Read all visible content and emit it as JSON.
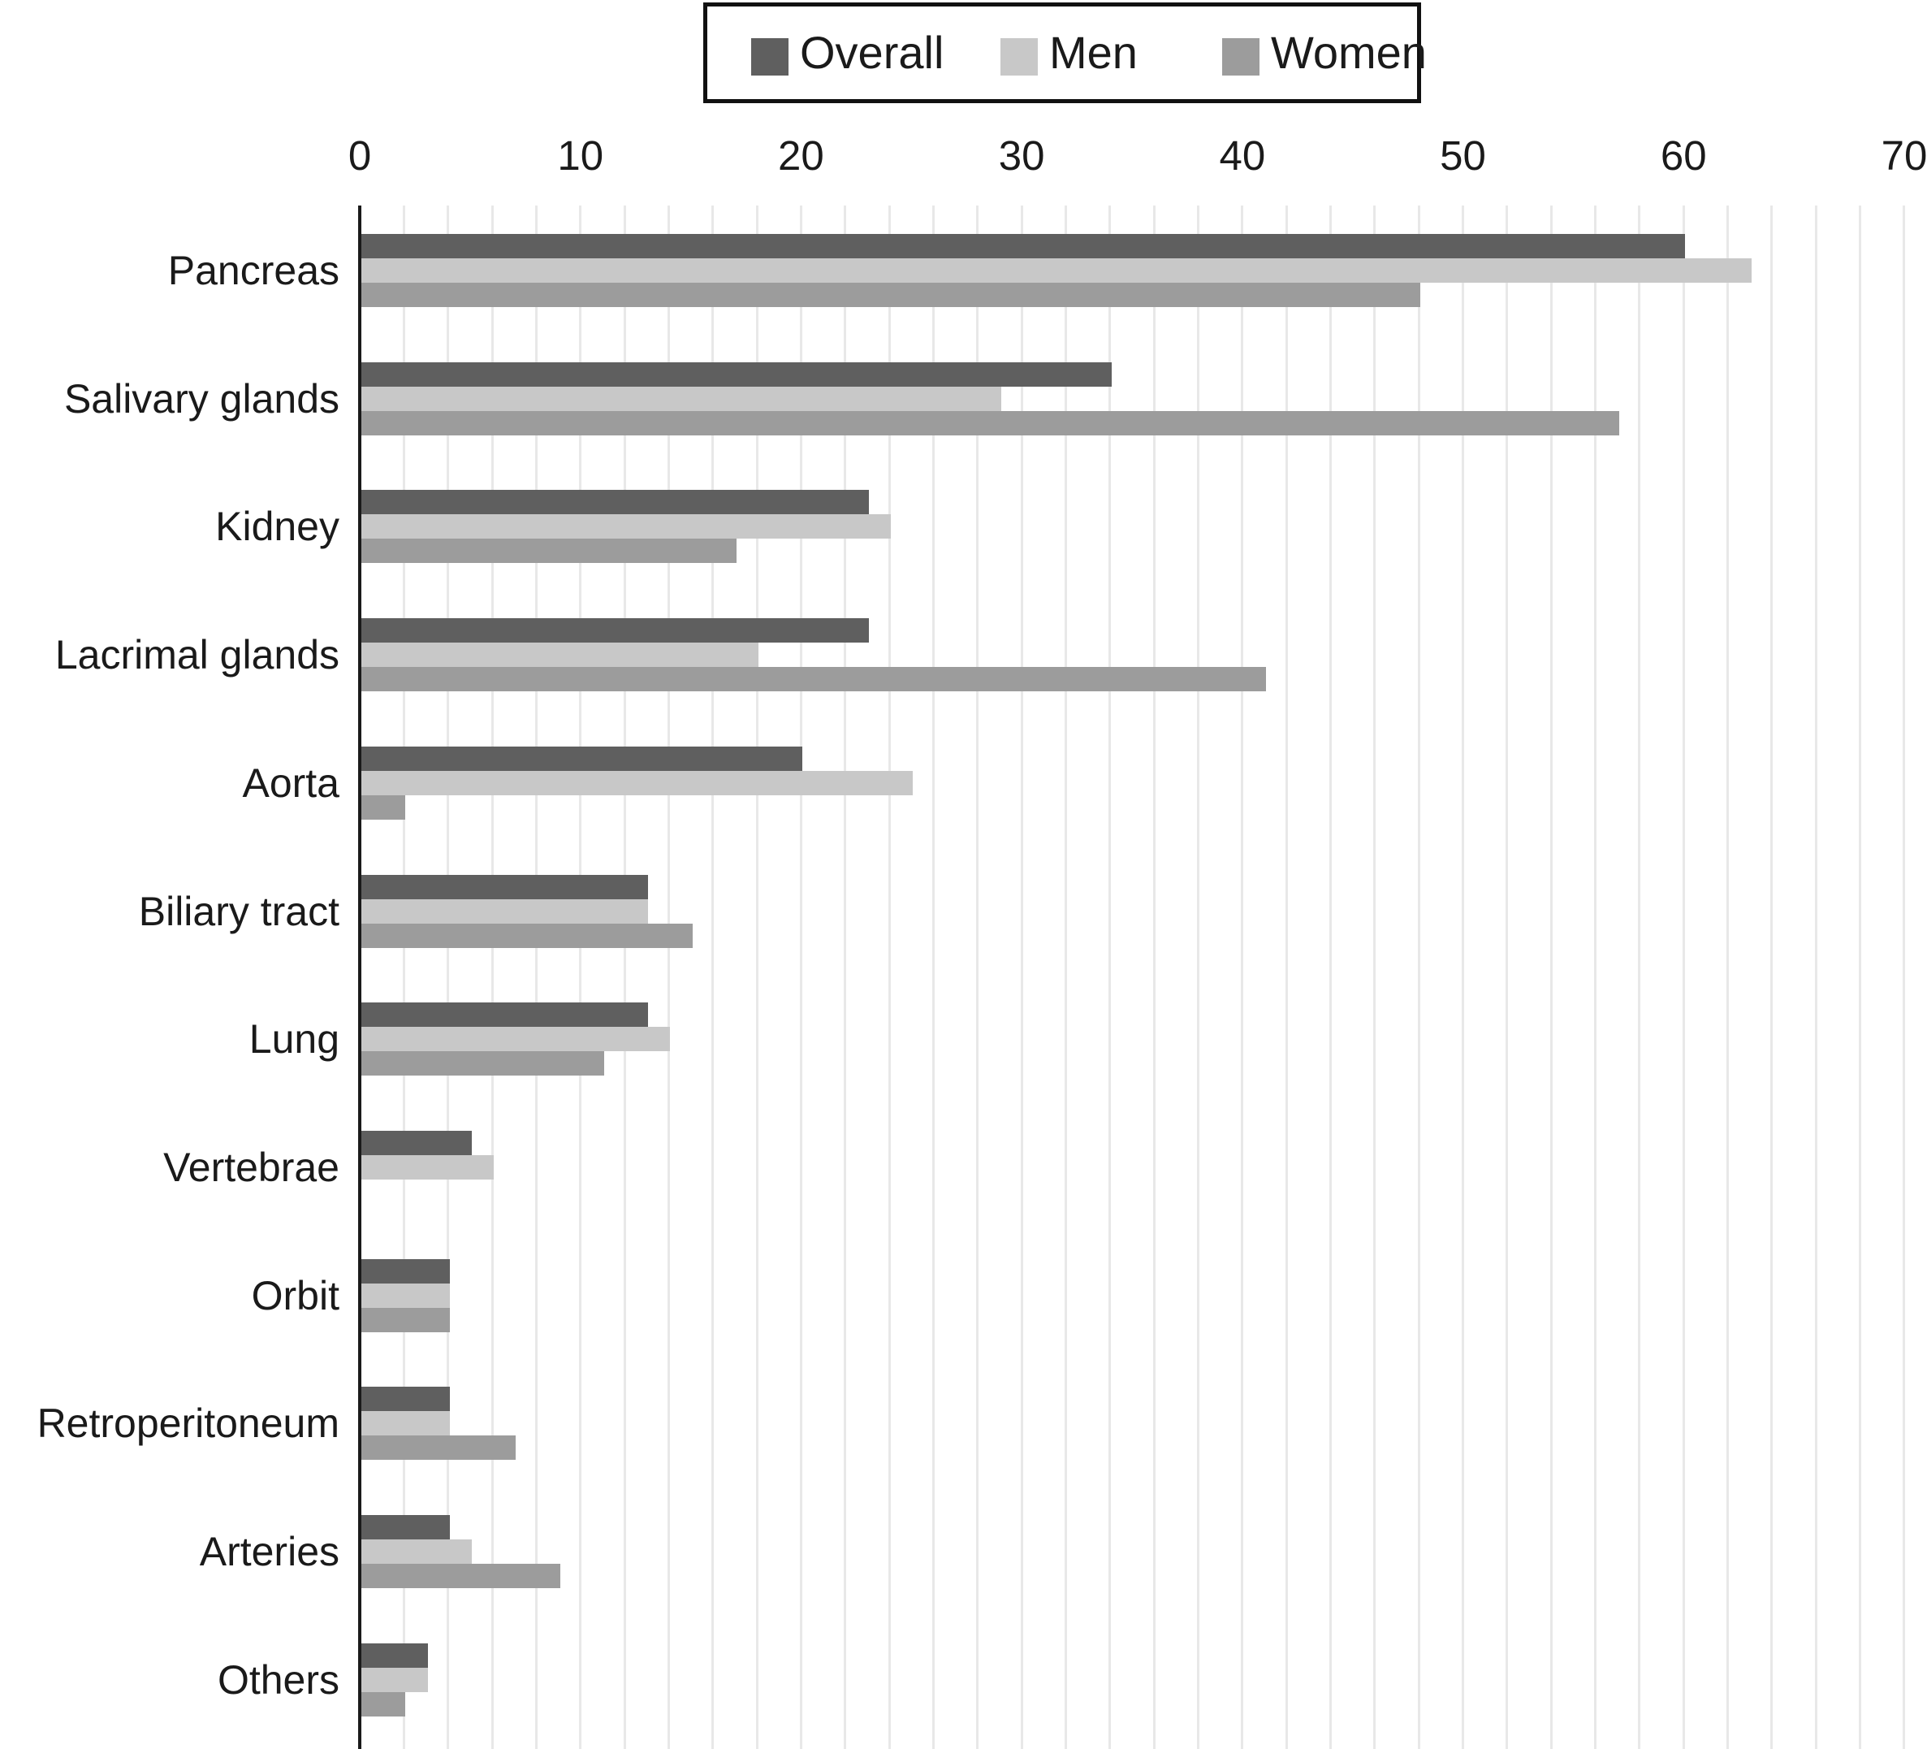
{
  "legend": {
    "items": [
      {
        "label": "Overall",
        "color": "#5f5f5f"
      },
      {
        "label": "Men",
        "color": "#c8c8c8"
      },
      {
        "label": "Women",
        "color": "#9c9c9c"
      }
    ]
  },
  "axis": {
    "tick_labels": [
      "0",
      "10",
      "20",
      "30",
      "40",
      "50",
      "60",
      "70"
    ],
    "tick_values": [
      0,
      10,
      20,
      30,
      40,
      50,
      60,
      70
    ],
    "minor_gridline_step": 2,
    "max": 70
  },
  "colors": {
    "overall": "#5f5f5f",
    "men": "#c8c8c8",
    "women": "#9c9c9c",
    "gridline": "#e8e8e8",
    "axis": "#1a1a1a"
  },
  "chart_data": {
    "type": "bar",
    "orientation": "horizontal",
    "title": "",
    "xlabel": "",
    "ylabel": "",
    "xlim": [
      0,
      70
    ],
    "grid": "vertical, every 2 units",
    "legend_position": "top-center",
    "categories": [
      "Pancreas",
      "Salivary glands",
      "Kidney",
      "Lacrimal glands",
      "Aorta",
      "Biliary tract",
      "Lung",
      "Vertebrae",
      "Orbit",
      "Retroperitoneum",
      "Arteries",
      "Others"
    ],
    "series": [
      {
        "name": "Overall",
        "color": "#5f5f5f",
        "values": [
          60,
          34,
          23,
          23,
          20,
          13,
          13,
          5,
          4,
          4,
          4,
          3
        ]
      },
      {
        "name": "Men",
        "color": "#c8c8c8",
        "values": [
          63,
          29,
          24,
          18,
          25,
          13,
          14,
          6,
          4,
          4,
          5,
          3
        ]
      },
      {
        "name": "Women",
        "color": "#9c9c9c",
        "values": [
          48,
          57,
          17,
          41,
          2,
          15,
          11,
          0,
          4,
          7,
          9,
          2
        ]
      }
    ]
  }
}
